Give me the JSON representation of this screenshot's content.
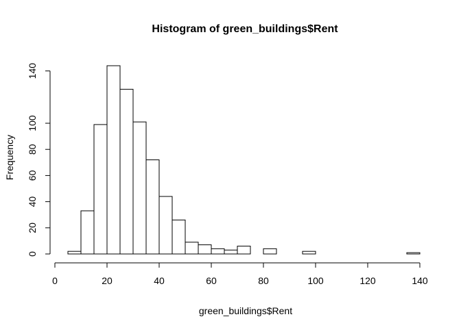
{
  "chart_data": {
    "type": "bar",
    "title": "Histogram of green_buildings$Rent",
    "xlabel": "green_buildings$Rent",
    "ylabel": "Frequency",
    "bins": [
      {
        "x0": 5,
        "x1": 10,
        "count": 2
      },
      {
        "x0": 10,
        "x1": 15,
        "count": 33
      },
      {
        "x0": 15,
        "x1": 20,
        "count": 99
      },
      {
        "x0": 20,
        "x1": 25,
        "count": 144
      },
      {
        "x0": 25,
        "x1": 30,
        "count": 126
      },
      {
        "x0": 30,
        "x1": 35,
        "count": 101
      },
      {
        "x0": 35,
        "x1": 40,
        "count": 72
      },
      {
        "x0": 40,
        "x1": 45,
        "count": 44
      },
      {
        "x0": 45,
        "x1": 50,
        "count": 26
      },
      {
        "x0": 50,
        "x1": 55,
        "count": 9
      },
      {
        "x0": 55,
        "x1": 60,
        "count": 7
      },
      {
        "x0": 60,
        "x1": 65,
        "count": 4
      },
      {
        "x0": 65,
        "x1": 70,
        "count": 3
      },
      {
        "x0": 70,
        "x1": 75,
        "count": 6
      },
      {
        "x0": 75,
        "x1": 80,
        "count": 0
      },
      {
        "x0": 80,
        "x1": 85,
        "count": 4
      },
      {
        "x0": 85,
        "x1": 90,
        "count": 0
      },
      {
        "x0": 90,
        "x1": 95,
        "count": 0
      },
      {
        "x0": 95,
        "x1": 100,
        "count": 2
      },
      {
        "x0": 100,
        "x1": 105,
        "count": 0
      },
      {
        "x0": 105,
        "x1": 110,
        "count": 0
      },
      {
        "x0": 110,
        "x1": 115,
        "count": 0
      },
      {
        "x0": 115,
        "x1": 120,
        "count": 0
      },
      {
        "x0": 120,
        "x1": 125,
        "count": 0
      },
      {
        "x0": 125,
        "x1": 130,
        "count": 0
      },
      {
        "x0": 130,
        "x1": 135,
        "count": 0
      },
      {
        "x0": 135,
        "x1": 140,
        "count": 1
      }
    ],
    "xlim": [
      0,
      140
    ],
    "ylim": [
      0,
      144
    ],
    "xticks": [
      0,
      20,
      40,
      60,
      80,
      100,
      120,
      140
    ],
    "yticks": [
      0,
      20,
      40,
      60,
      80,
      100,
      140
    ],
    "grid": false,
    "legend": "none",
    "colors": {
      "bar_fill": "#ffffff",
      "bar_stroke": "#000000",
      "axis": "#000000"
    }
  }
}
